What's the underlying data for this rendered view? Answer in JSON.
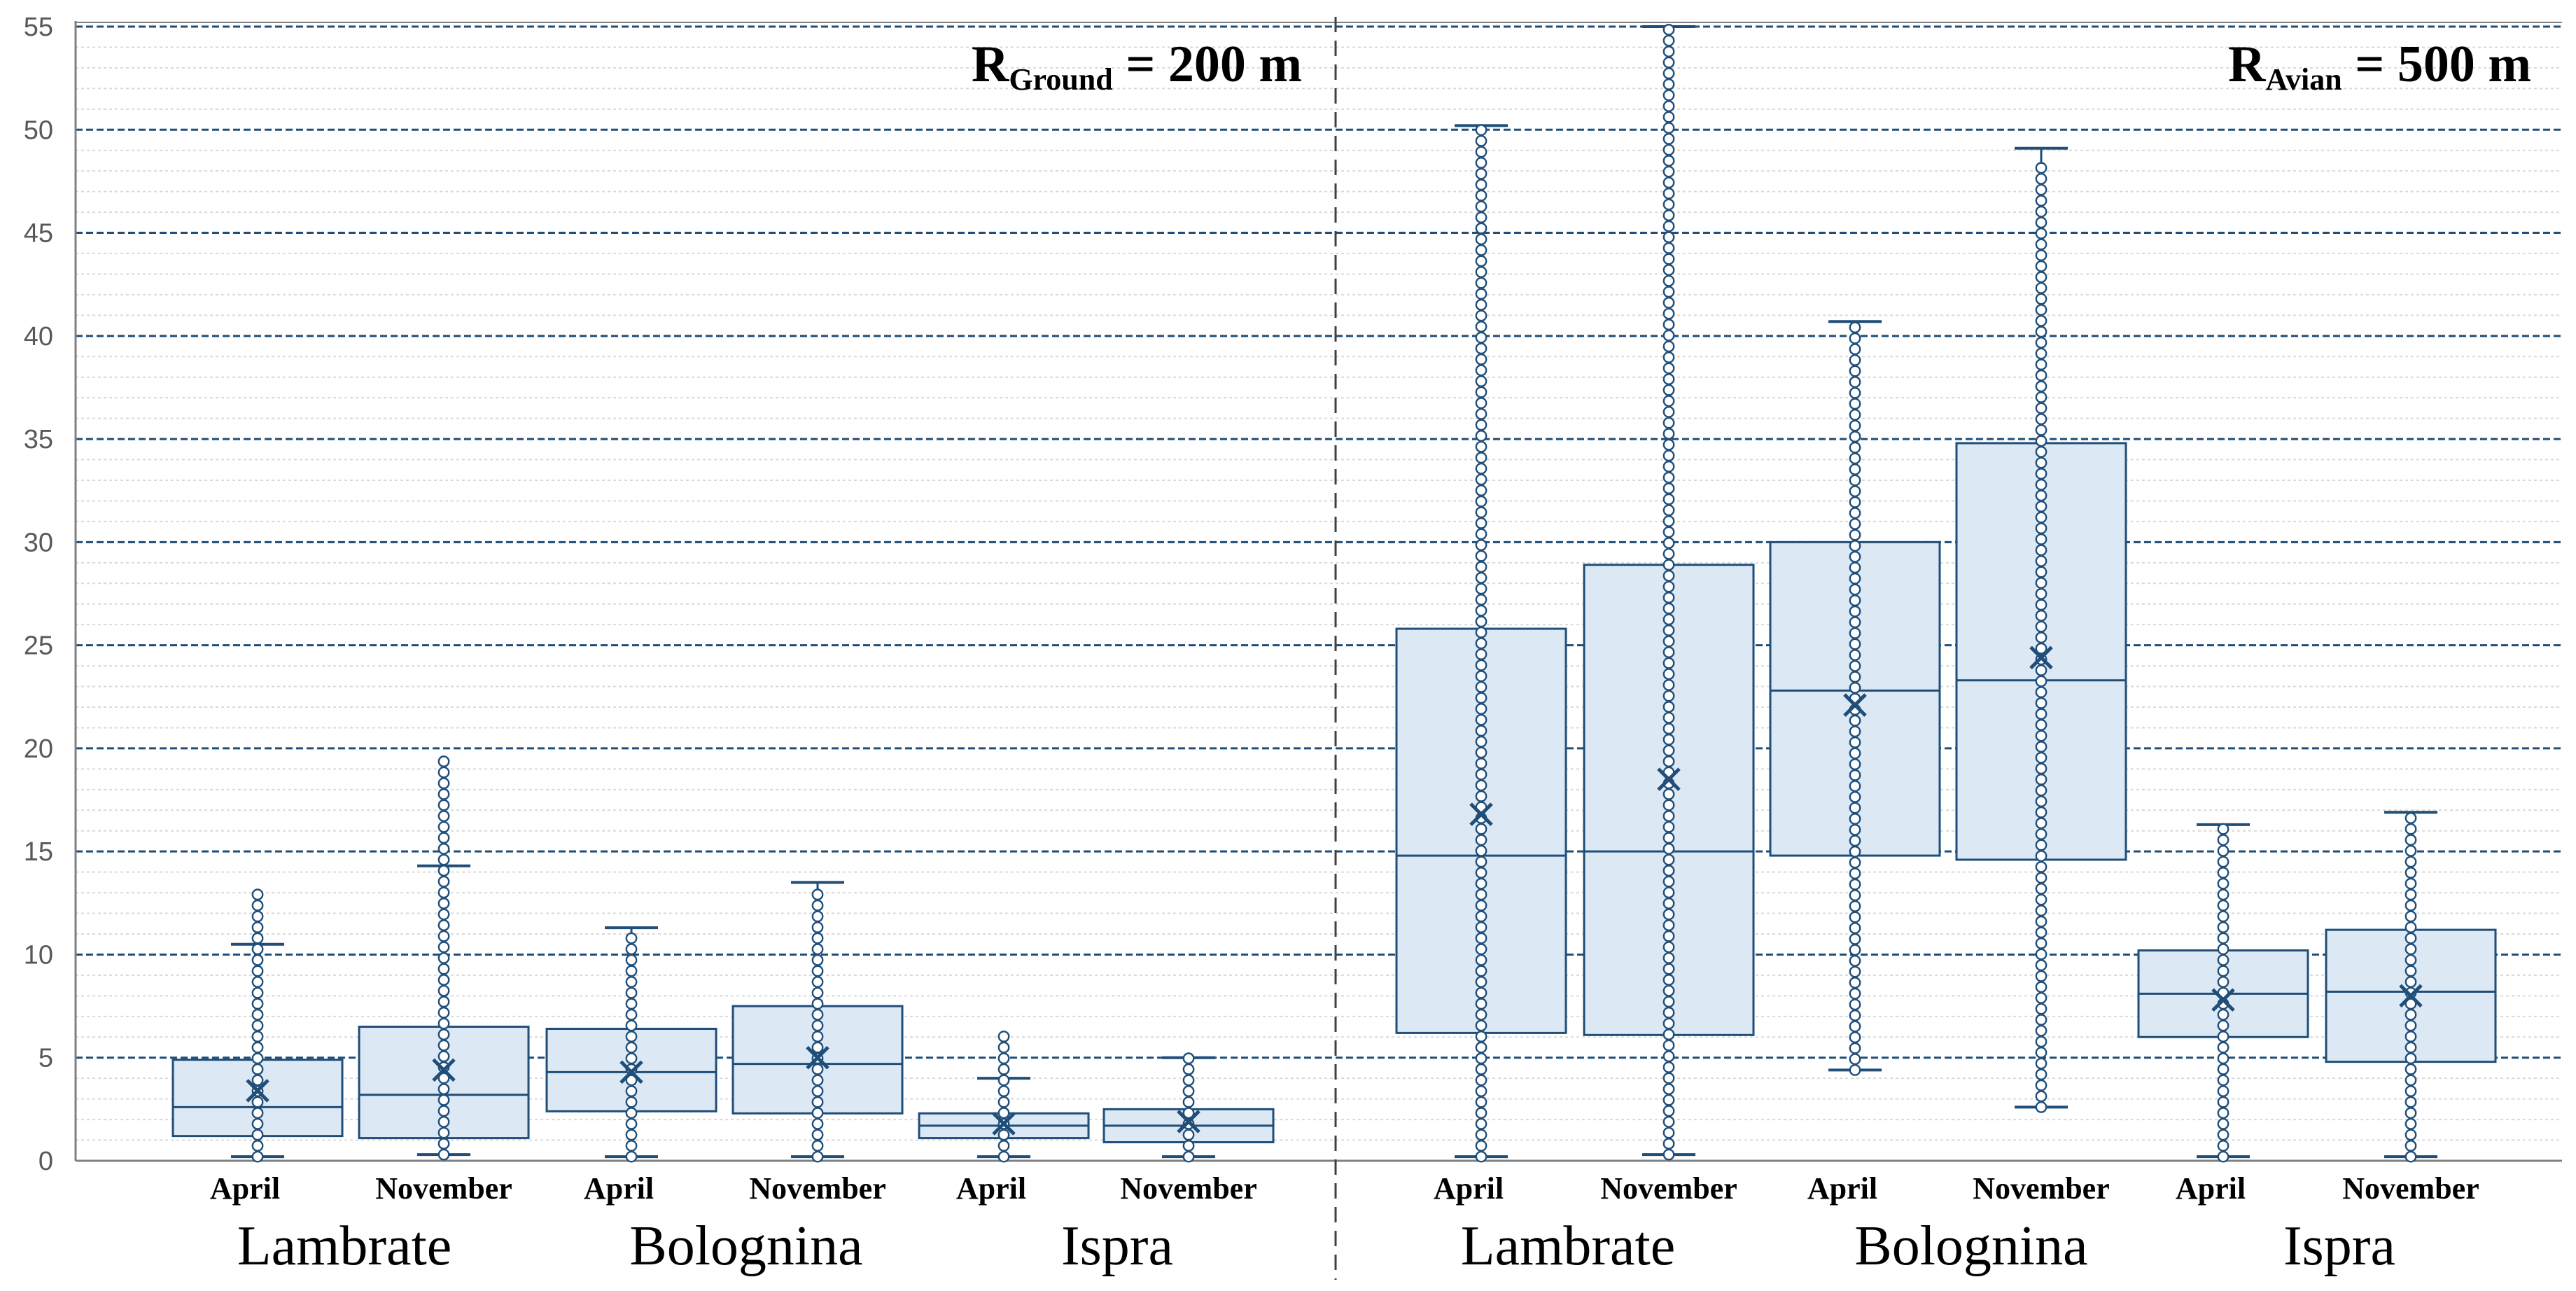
{
  "colors": {
    "box_fill": "#dde8f5",
    "box_stroke": "#1f4e79",
    "major_grid": "#1f4e79",
    "minor_grid": "#d9d9d9",
    "axis": "#808080"
  },
  "chart_data": {
    "type": "boxplot",
    "title": "",
    "xlabel": "",
    "ylabel": "",
    "ylim": [
      0,
      55
    ],
    "yticks": [
      0,
      5,
      10,
      15,
      20,
      25,
      30,
      35,
      40,
      45,
      50,
      55
    ],
    "minor_tick_step": 1,
    "panels": [
      {
        "title_main": "R",
        "title_sub": "Ground",
        "title_rest": " = 200 m",
        "groups": [
          {
            "site": "Lambrate",
            "series": [
              {
                "month": "April",
                "min": 0.2,
                "q1": 1.2,
                "median": 2.6,
                "q3": 4.9,
                "whisker_high": 10.5,
                "mean": 3.4,
                "points_max": 13.0
              },
              {
                "month": "November",
                "min": 0.3,
                "q1": 1.1,
                "median": 3.2,
                "q3": 6.5,
                "whisker_high": 14.3,
                "mean": 4.4,
                "points_max": 19.7
              }
            ]
          },
          {
            "site": "Bolognina",
            "series": [
              {
                "month": "April",
                "min": 0.2,
                "q1": 2.4,
                "median": 4.3,
                "q3": 6.4,
                "whisker_high": 11.3,
                "mean": 4.3,
                "points_max": 10.8
              },
              {
                "month": "November",
                "min": 0.2,
                "q1": 2.3,
                "median": 4.7,
                "q3": 7.5,
                "whisker_high": 13.5,
                "mean": 5.0,
                "points_max": 13.0
              }
            ]
          },
          {
            "site": "Ispra",
            "series": [
              {
                "month": "April",
                "min": 0.2,
                "q1": 1.1,
                "median": 1.7,
                "q3": 2.3,
                "whisker_high": 4.0,
                "mean": 1.8,
                "points_max": 6.3
              },
              {
                "month": "November",
                "min": 0.2,
                "q1": 0.9,
                "median": 1.7,
                "q3": 2.5,
                "whisker_high": 5.0,
                "mean": 1.9,
                "points_max": 5.2
              }
            ]
          }
        ]
      },
      {
        "title_main": "R",
        "title_sub": "Avian",
        "title_rest": " = 500 m",
        "groups": [
          {
            "site": "Lambrate",
            "series": [
              {
                "month": "April",
                "min": 0.2,
                "q1": 6.2,
                "median": 14.8,
                "q3": 25.8,
                "whisker_high": 50.2,
                "mean": 16.8,
                "points_max": 50.0
              },
              {
                "month": "November",
                "min": 0.3,
                "q1": 6.1,
                "median": 15.0,
                "q3": 28.9,
                "whisker_high": 55.0,
                "mean": 18.5,
                "points_max": 55.0
              }
            ]
          },
          {
            "site": "Bolognina",
            "series": [
              {
                "month": "April",
                "min": 4.4,
                "q1": 14.8,
                "median": 22.8,
                "q3": 30.0,
                "whisker_high": 40.7,
                "mean": 22.1,
                "points_max": 40.5
              },
              {
                "month": "November",
                "min": 2.6,
                "q1": 14.6,
                "median": 23.3,
                "q3": 34.8,
                "whisker_high": 49.1,
                "mean": 24.4,
                "points_max": 48.3
              }
            ]
          },
          {
            "site": "Ispra",
            "series": [
              {
                "month": "April",
                "min": 0.2,
                "q1": 6.0,
                "median": 8.1,
                "q3": 10.2,
                "whisker_high": 16.3,
                "mean": 7.8,
                "points_max": 16.6
              },
              {
                "month": "November",
                "min": 0.2,
                "q1": 4.8,
                "median": 8.2,
                "q3": 11.2,
                "whisker_high": 16.9,
                "mean": 8.0,
                "points_max": 16.9
              }
            ]
          }
        ]
      }
    ]
  }
}
